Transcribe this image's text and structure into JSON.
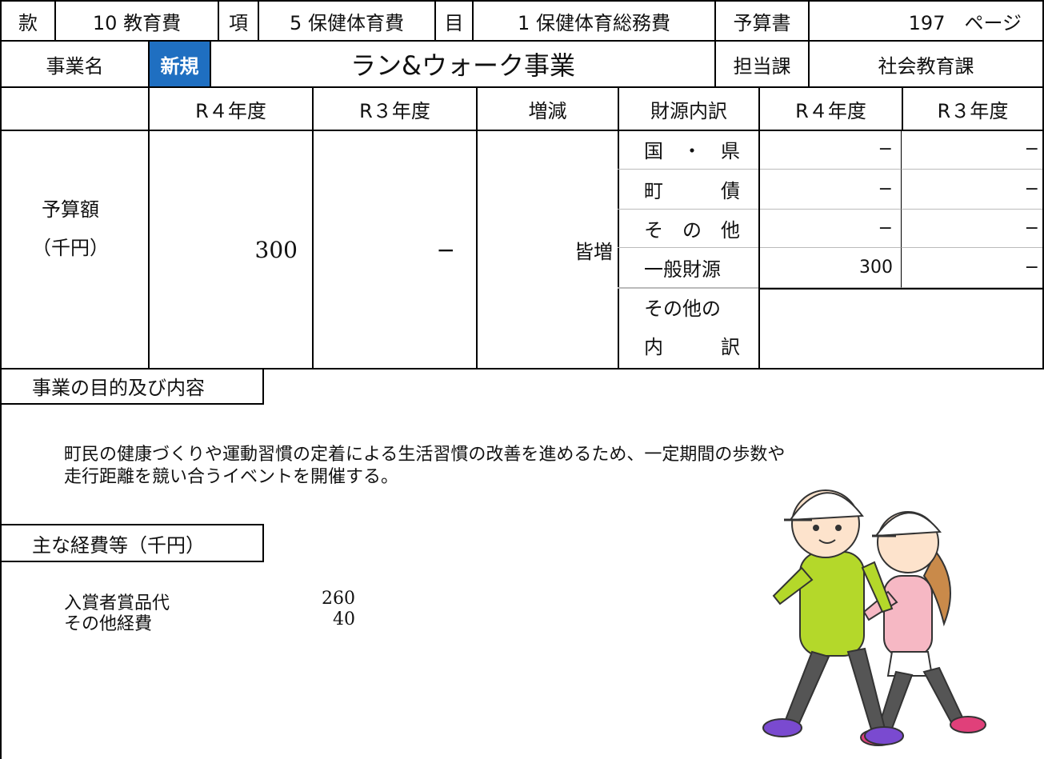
{
  "header": {
    "kan_label": "款",
    "kan": "10 教育費",
    "kou_label": "項",
    "kou": "5 保健体育費",
    "moku_label": "目",
    "moku": "1 保健体育総務費",
    "budget_book_label": "予算書",
    "budget_book_page": "197　ページ"
  },
  "project": {
    "label": "事業名",
    "badge": "新規",
    "name": "ラン&ウォーク事業",
    "dept_label": "担当課",
    "dept": "社会教育課"
  },
  "budget_table": {
    "headers": [
      "R４年度",
      "R３年度",
      "増減",
      "財源内訳",
      "R４年度",
      "R３年度"
    ],
    "row_label": [
      "予算額",
      "（千円）"
    ],
    "r4": "300",
    "r3": "−",
    "change": "皆増",
    "sources": [
      {
        "name": "国　・　県",
        "r4": "−",
        "r3": "−"
      },
      {
        "name": "町　　　債",
        "r4": "−",
        "r3": "−"
      },
      {
        "name": "そ　の　他",
        "r4": "−",
        "r3": "−"
      },
      {
        "name": "一般財源",
        "r4": "300",
        "r3": "−"
      }
    ],
    "other_breakdown_label": [
      "その他の",
      "内　　　訳"
    ]
  },
  "purpose": {
    "heading": "事業の目的及び内容",
    "lines": [
      "町民の健康づくりや運動習慣の定着による生活習慣の改善を進めるため、一定期間の歩数や",
      "走行距離を競い合うイベントを開催する。"
    ]
  },
  "expenses": {
    "heading": "主な経費等（千円）",
    "items": [
      {
        "name": "入賞者賞品代",
        "amount": "260"
      },
      {
        "name": "その他経費",
        "amount": "40"
      }
    ]
  }
}
